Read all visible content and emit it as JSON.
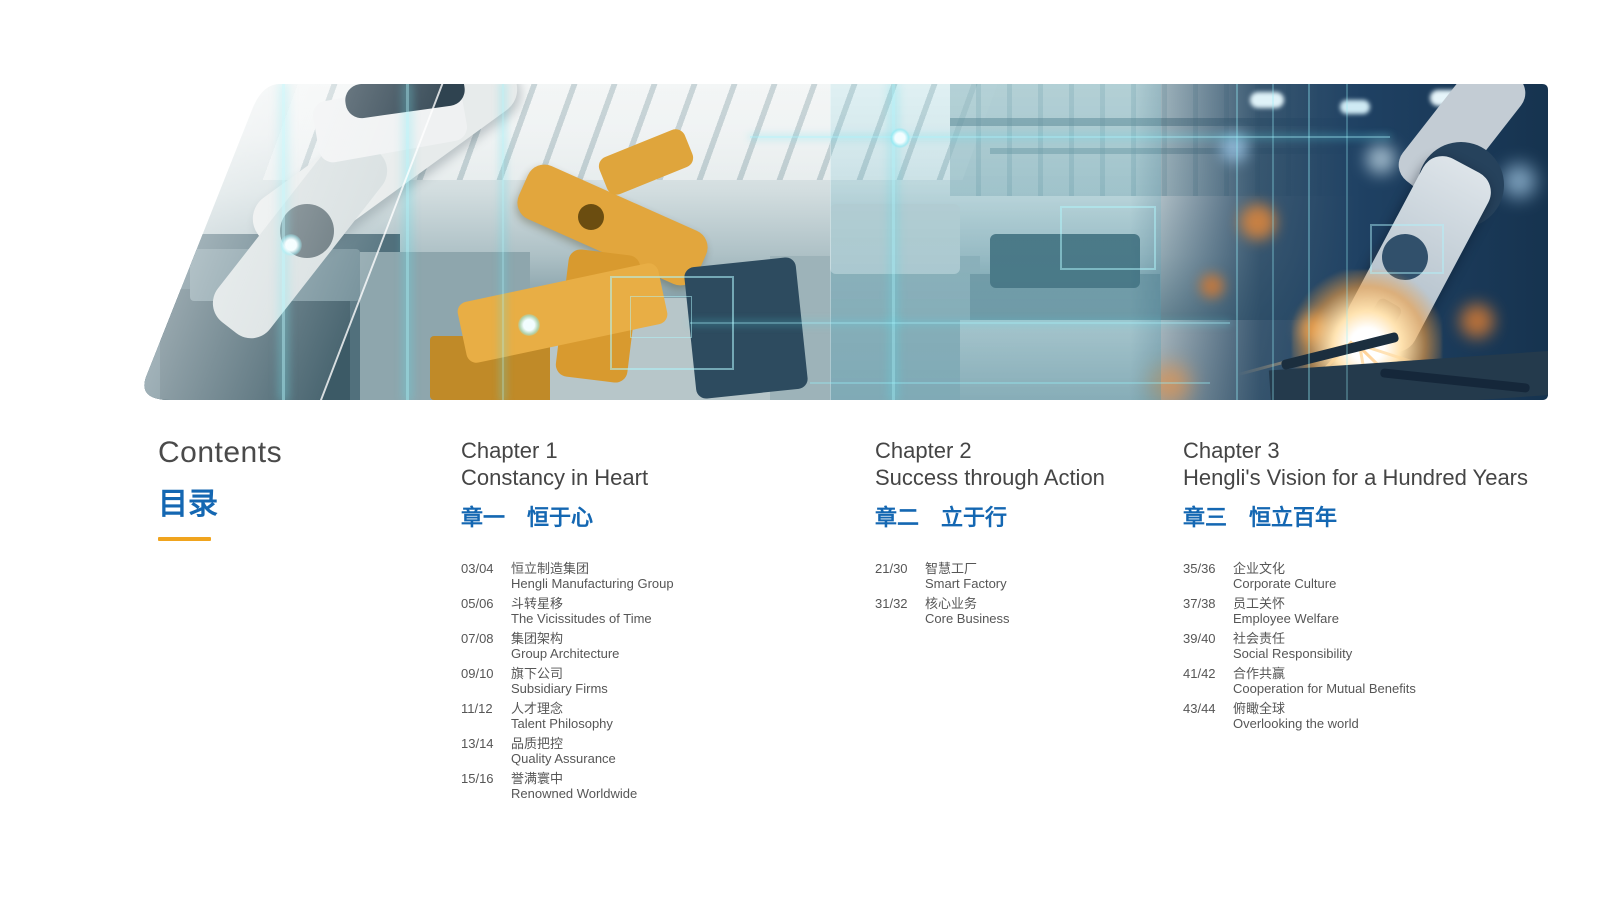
{
  "contents": {
    "title_en": "Contents",
    "title_zh": "目录"
  },
  "colors": {
    "accent_blue": "#1467b2",
    "accent_orange": "#f0a41e",
    "heading_gray": "#4a4a4a",
    "body_gray": "#565656"
  },
  "banner": {
    "icon": "factory-robots-photo"
  },
  "chapters": [
    {
      "title_en_line1": "Chapter 1",
      "title_en_line2": "Constancy in Heart",
      "title_zh": "章一　恒于心",
      "items": [
        {
          "pages": "03/04",
          "zh": "恒立制造集团",
          "en": "Hengli Manufacturing Group"
        },
        {
          "pages": "05/06",
          "zh": "斗转星移",
          "en": "The Vicissitudes of Time"
        },
        {
          "pages": "07/08",
          "zh": "集团架构",
          "en": "Group Architecture"
        },
        {
          "pages": "09/10",
          "zh": "旗下公司",
          "en": "Subsidiary Firms"
        },
        {
          "pages": "11/12",
          "zh": "人才理念",
          "en": "Talent Philosophy"
        },
        {
          "pages": "13/14",
          "zh": "品质把控",
          "en": "Quality Assurance"
        },
        {
          "pages": "15/16",
          "zh": "誉满寰中",
          "en": "Renowned Worldwide"
        }
      ]
    },
    {
      "title_en_line1": "Chapter 2",
      "title_en_line2": "Success through Action",
      "title_zh": "章二　立于行",
      "items": [
        {
          "pages": "21/30",
          "zh": "智慧工厂",
          "en": "Smart Factory"
        },
        {
          "pages": "31/32",
          "zh": "核心业务",
          "en": "Core Business"
        }
      ]
    },
    {
      "title_en_line1": "Chapter 3",
      "title_en_line2": "Hengli's Vision for a Hundred Years",
      "title_zh": "章三　恒立百年",
      "items": [
        {
          "pages": "35/36",
          "zh": "企业文化",
          "en": "Corporate Culture"
        },
        {
          "pages": "37/38",
          "zh": "员工关怀",
          "en": "Employee Welfare"
        },
        {
          "pages": "39/40",
          "zh": "社会责任",
          "en": "Social Responsibility"
        },
        {
          "pages": "41/42",
          "zh": "合作共赢",
          "en": "Cooperation for Mutual Benefits"
        },
        {
          "pages": "43/44",
          "zh": "俯瞰全球",
          "en": "Overlooking the world"
        }
      ]
    }
  ]
}
